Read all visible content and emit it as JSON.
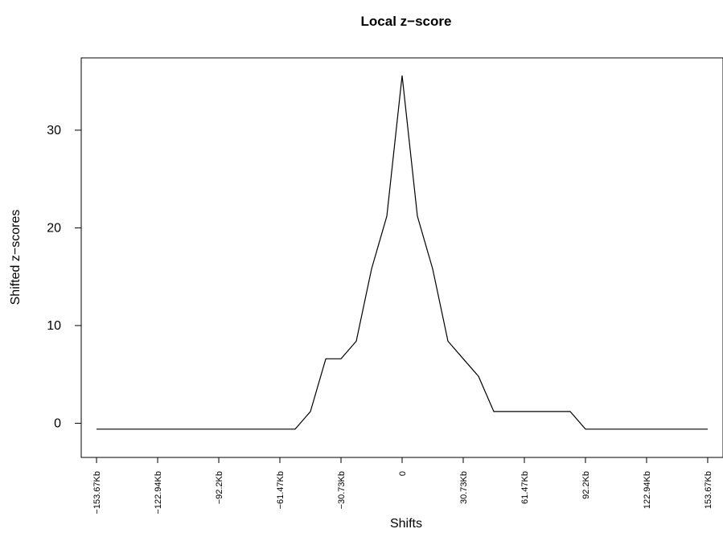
{
  "chart_data": {
    "type": "line",
    "title": "Local z−score",
    "xlabel": "Shifts",
    "ylabel": "Shifted z−scores",
    "x_unit": "Kb",
    "xlim": [
      -161.37,
      161.37
    ],
    "ylim": [
      -3.5,
      37.4
    ],
    "x_ticks": [
      -153.67,
      -122.94,
      -92.2,
      -61.47,
      -30.73,
      0,
      30.73,
      61.47,
      92.2,
      122.94,
      153.67
    ],
    "x_tick_labels": [
      "−153.67Kb",
      "−122.94Kb",
      "−92.2Kb",
      "−61.47Kb",
      "−30.73Kb",
      "0",
      "30.73Kb",
      "61.47Kb",
      "92.2Kb",
      "122.94Kb",
      "153.67Kb"
    ],
    "y_ticks": [
      0,
      10,
      20,
      30
    ],
    "y_tick_labels": [
      "0",
      "10",
      "20",
      "30"
    ],
    "grid": false,
    "series": [
      {
        "color": "#000000",
        "x": [
          -153.67,
          -53.77,
          -46.1,
          -38.4,
          -30.73,
          -23.05,
          -15.37,
          -7.68,
          0,
          7.68,
          15.37,
          23.05,
          30.73,
          38.42,
          46.1,
          53.77,
          61.47,
          69.15,
          76.84,
          84.52,
          92.2,
          99.88,
          107.56,
          115.25,
          122.94,
          130.62,
          138.3,
          145.98,
          153.67
        ],
        "y": [
          -0.6,
          -0.6,
          1.2,
          6.6,
          6.6,
          8.4,
          15.8,
          21.2,
          35.6,
          21.2,
          15.8,
          8.4,
          6.6,
          4.8,
          1.2,
          1.2,
          1.2,
          1.2,
          1.2,
          1.2,
          -0.6,
          -0.6,
          -0.6,
          -0.6,
          -0.6,
          -0.6,
          -0.6,
          -0.6,
          -0.6
        ]
      }
    ]
  }
}
